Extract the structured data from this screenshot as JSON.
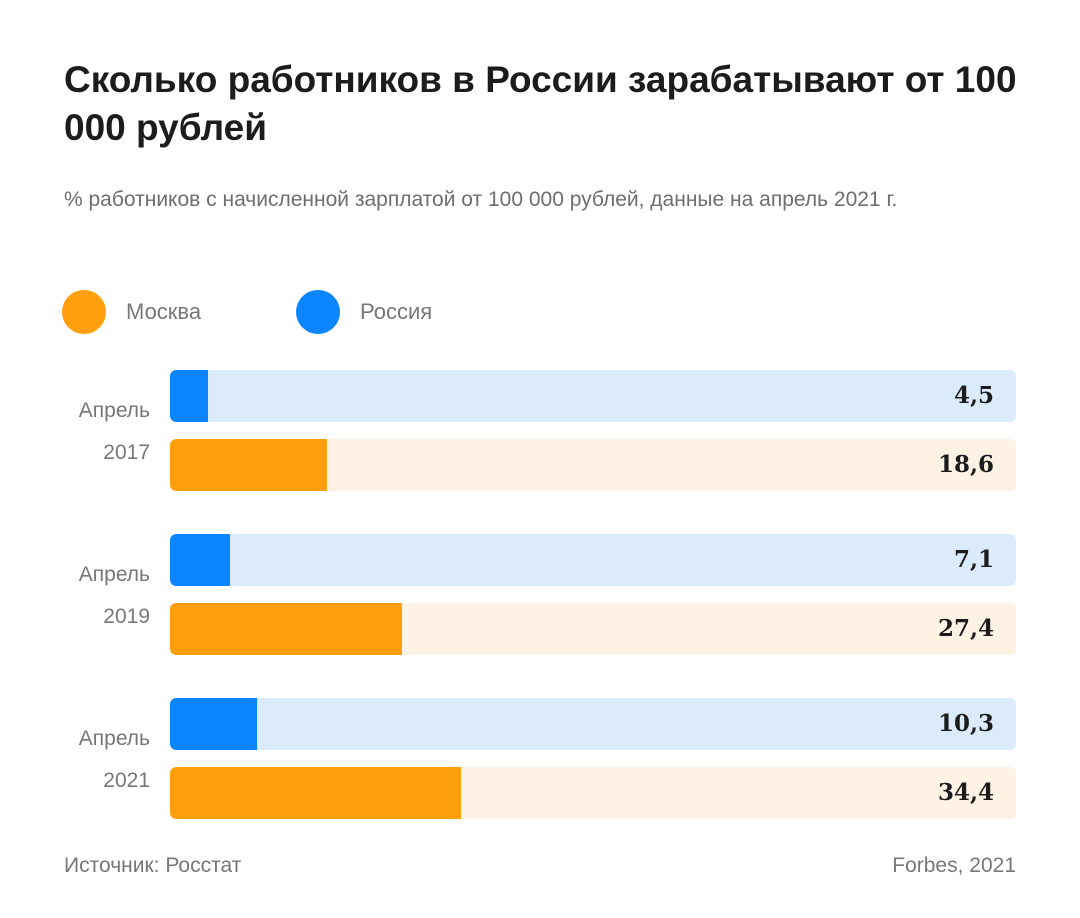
{
  "header": {
    "title": "Сколько работников в России зарабатывают от 100 000 рублей",
    "subtitle": "% работников с начисленной зарплатой от 100 000 рублей, данные на апрель 2021 г."
  },
  "legend": [
    {
      "label": "Москва",
      "color": "#FF9F0E"
    },
    {
      "label": "Россия",
      "color": "#0A84FF"
    }
  ],
  "colors": {
    "russia_track": "#DCEBFB",
    "moscow_track": "#FDF2E3"
  },
  "footer": {
    "source": "Источник: Росстат",
    "credit": "Forbes, 2021"
  },
  "chart_data": {
    "type": "bar",
    "orientation": "horizontal",
    "categories": [
      {
        "label_line1": "Апрель",
        "label_line2": "2017"
      },
      {
        "label_line1": "Апрель",
        "label_line2": "2019"
      },
      {
        "label_line1": "Апрель",
        "label_line2": "2021"
      }
    ],
    "series": [
      {
        "name": "Россия",
        "color": "#0A84FF",
        "values": [
          4.5,
          7.1,
          10.3
        ],
        "labels": [
          "4,5",
          "7,1",
          "10,3"
        ]
      },
      {
        "name": "Москва",
        "color": "#FF9F0E",
        "values": [
          18.6,
          27.4,
          34.4
        ],
        "labels": [
          "18,6",
          "27,4",
          "34,4"
        ]
      }
    ],
    "xlim": [
      0,
      100
    ],
    "grid": false,
    "legend_position": "top-left"
  }
}
